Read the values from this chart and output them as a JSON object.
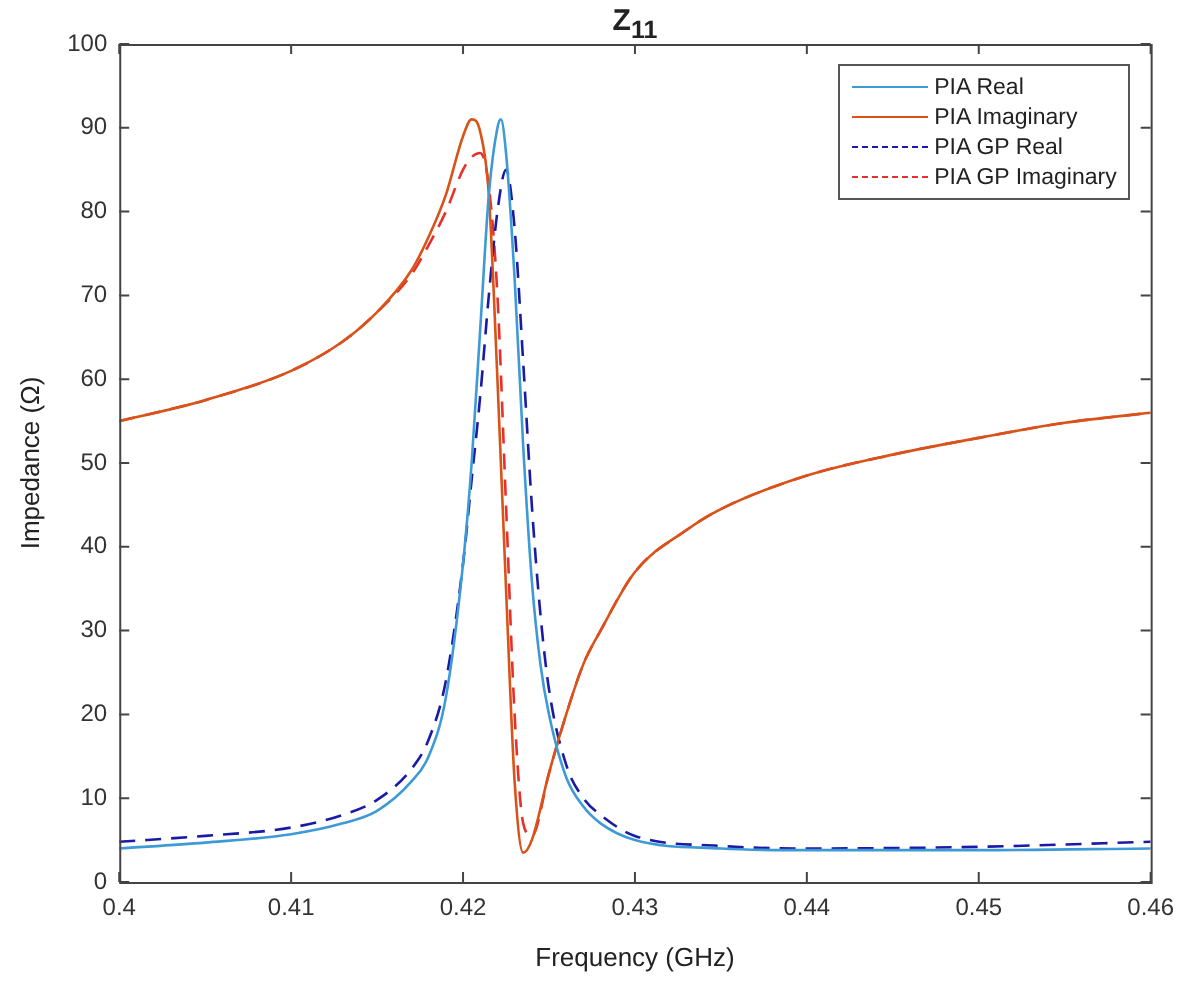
{
  "chart_data": {
    "type": "line",
    "title": "Z$_{11}$",
    "xlabel": "Frequency (GHz)",
    "ylabel": "Impedance (Ω)",
    "xlim": [
      0.4,
      0.46
    ],
    "xticks": [
      0.4,
      0.41,
      0.42,
      0.43,
      0.44,
      0.45,
      0.46
    ],
    "ylim": [
      0,
      100
    ],
    "yticks": [
      0,
      10,
      20,
      30,
      40,
      50,
      60,
      70,
      80,
      90,
      100
    ],
    "grid": false,
    "legend": "top right",
    "marker": "none",
    "series": [
      {
        "name": "PIA Real",
        "color": "#3d9ad6",
        "line_style": "solid",
        "x": [
          0.4,
          0.405,
          0.41,
          0.413,
          0.415,
          0.417,
          0.418,
          0.419,
          0.42,
          0.4205,
          0.421,
          0.4215,
          0.422,
          0.4222,
          0.4225,
          0.423,
          0.4235,
          0.424,
          0.4245,
          0.425,
          0.426,
          0.427,
          0.428,
          0.43,
          0.435,
          0.44,
          0.45,
          0.46
        ],
        "values": [
          4,
          4.7,
          5.7,
          7,
          8.5,
          12,
          15,
          22,
          38,
          50,
          66,
          82,
          90,
          91,
          87,
          72,
          52,
          36,
          26,
          20,
          12.5,
          9,
          7,
          5,
          4,
          3.8,
          3.8,
          4
        ]
      },
      {
        "name": "PIA Imaginary",
        "color": "#d95319",
        "line_style": "solid",
        "x": [
          0.4,
          0.405,
          0.41,
          0.413,
          0.415,
          0.417,
          0.418,
          0.419,
          0.42,
          0.4205,
          0.421,
          0.4215,
          0.422,
          0.4225,
          0.423,
          0.4235,
          0.424,
          0.425,
          0.426,
          0.427,
          0.428,
          0.43,
          0.433,
          0.435,
          0.44,
          0.445,
          0.45,
          0.455,
          0.46
        ],
        "values": [
          55,
          57.5,
          61,
          64.5,
          68,
          73,
          77,
          82,
          89,
          91,
          89.5,
          82,
          60,
          35,
          12,
          3.5,
          5,
          13,
          20,
          26,
          30,
          37,
          42,
          44.5,
          48.5,
          51,
          53,
          54.8,
          56
        ]
      },
      {
        "name": "PIA GP Real",
        "color": "#1a1aa6",
        "line_style": "dashed",
        "x": [
          0.4,
          0.405,
          0.41,
          0.413,
          0.415,
          0.417,
          0.418,
          0.419,
          0.42,
          0.4205,
          0.421,
          0.4215,
          0.422,
          0.4225,
          0.423,
          0.4235,
          0.424,
          0.4245,
          0.425,
          0.426,
          0.427,
          0.428,
          0.43,
          0.435,
          0.44,
          0.45,
          0.46
        ],
        "values": [
          4.8,
          5.5,
          6.5,
          8,
          9.8,
          13.5,
          17,
          24,
          38,
          48,
          58,
          70,
          80,
          85,
          78,
          62,
          45,
          32,
          23,
          14,
          10,
          8,
          5.5,
          4.3,
          4,
          4.2,
          4.8
        ]
      },
      {
        "name": "PIA GP Imaginary",
        "color": "#e8302a",
        "line_style": "dashed",
        "x": [
          0.4,
          0.405,
          0.41,
          0.413,
          0.415,
          0.417,
          0.418,
          0.419,
          0.42,
          0.4205,
          0.421,
          0.4215,
          0.422,
          0.4225,
          0.423,
          0.4235,
          0.424,
          0.425,
          0.426,
          0.427,
          0.428,
          0.43,
          0.433,
          0.435,
          0.44,
          0.445,
          0.45,
          0.455,
          0.46
        ],
        "values": [
          55,
          57.5,
          61,
          64.5,
          68,
          72.5,
          76,
          80,
          85,
          86.5,
          87,
          83,
          70,
          45,
          20,
          7,
          5.5,
          13,
          20,
          26,
          30,
          37,
          42,
          44.5,
          48.5,
          51,
          53,
          54.8,
          56
        ]
      }
    ]
  }
}
